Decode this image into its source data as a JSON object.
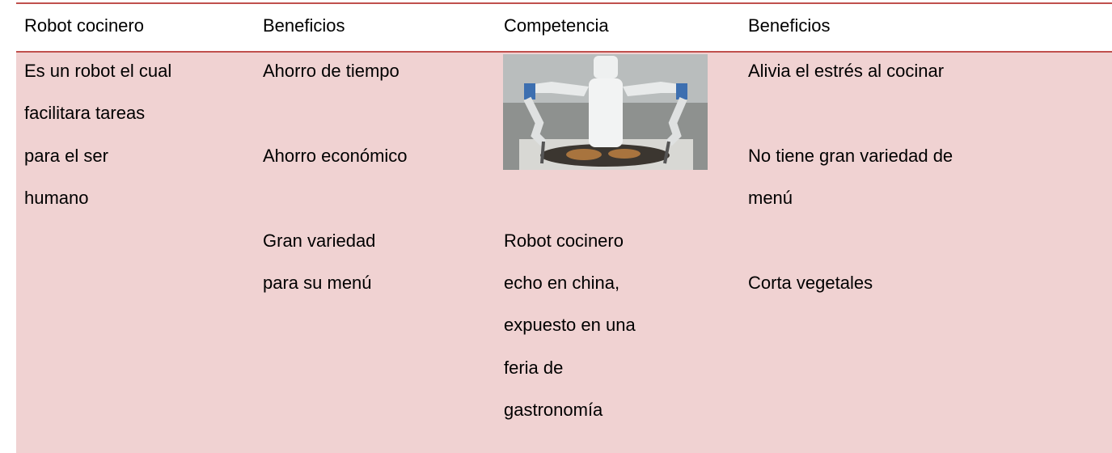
{
  "table": {
    "header": [
      "Robot cocinero",
      "Beneficios",
      "Competencia",
      "Beneficios"
    ],
    "columns": [
      {
        "items": [
          {
            "lines": [
              "Es un robot el cual",
              "facilitara tareas",
              "para el ser",
              "humano"
            ]
          }
        ]
      },
      {
        "items": [
          {
            "lines": [
              "Ahorro de tiempo"
            ]
          },
          {
            "lines": [
              "Ahorro económico"
            ]
          },
          {
            "lines": [
              "Gran variedad",
              "para su menú"
            ]
          }
        ]
      },
      {
        "items": [
          {
            "lines": [
              "Robot cocinero",
              "echo en china,",
              "expuesto en una",
              "feria de",
              "gastronomía"
            ]
          }
        ]
      },
      {
        "items": [
          {
            "lines": [
              "Alivia el estrés al cocinar"
            ]
          },
          {
            "lines": [
              "No tiene gran variedad de",
              "menú"
            ]
          },
          {
            "lines": [
              "Corta vegetales"
            ]
          }
        ]
      }
    ]
  }
}
